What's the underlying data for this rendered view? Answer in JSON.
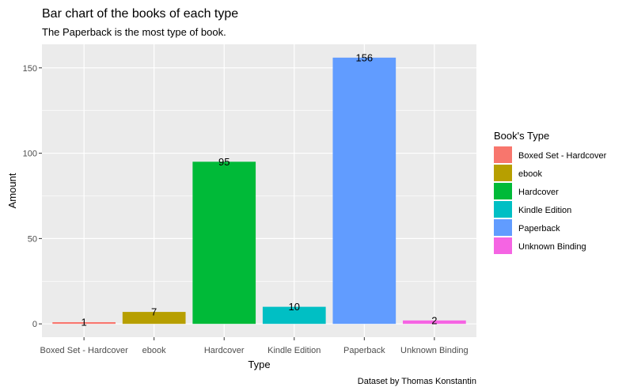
{
  "chart_data": {
    "type": "bar",
    "title": "Bar chart of the books of each type",
    "subtitle": "The Paperback is the most type of book.",
    "caption": "Dataset by Thomas Konstantin",
    "xlabel": "Type",
    "ylabel": "Amount",
    "ylim": [
      -7.8,
      163.8
    ],
    "yticks": [
      0,
      50,
      100,
      150
    ],
    "grid": true,
    "legend_title": "Book's Type",
    "legend_position": "right",
    "categories": [
      "Boxed Set - Hardcover",
      "ebook",
      "Hardcover",
      "Kindle Edition",
      "Paperback",
      "Unknown Binding"
    ],
    "values": [
      1,
      7,
      95,
      10,
      156,
      2
    ],
    "colors": [
      "#F8766D",
      "#B79F00",
      "#00BA38",
      "#00BFC4",
      "#619CFF",
      "#F564E3"
    ],
    "panel_background": "#EBEBEB",
    "gridline_color": "#FFFFFF"
  }
}
